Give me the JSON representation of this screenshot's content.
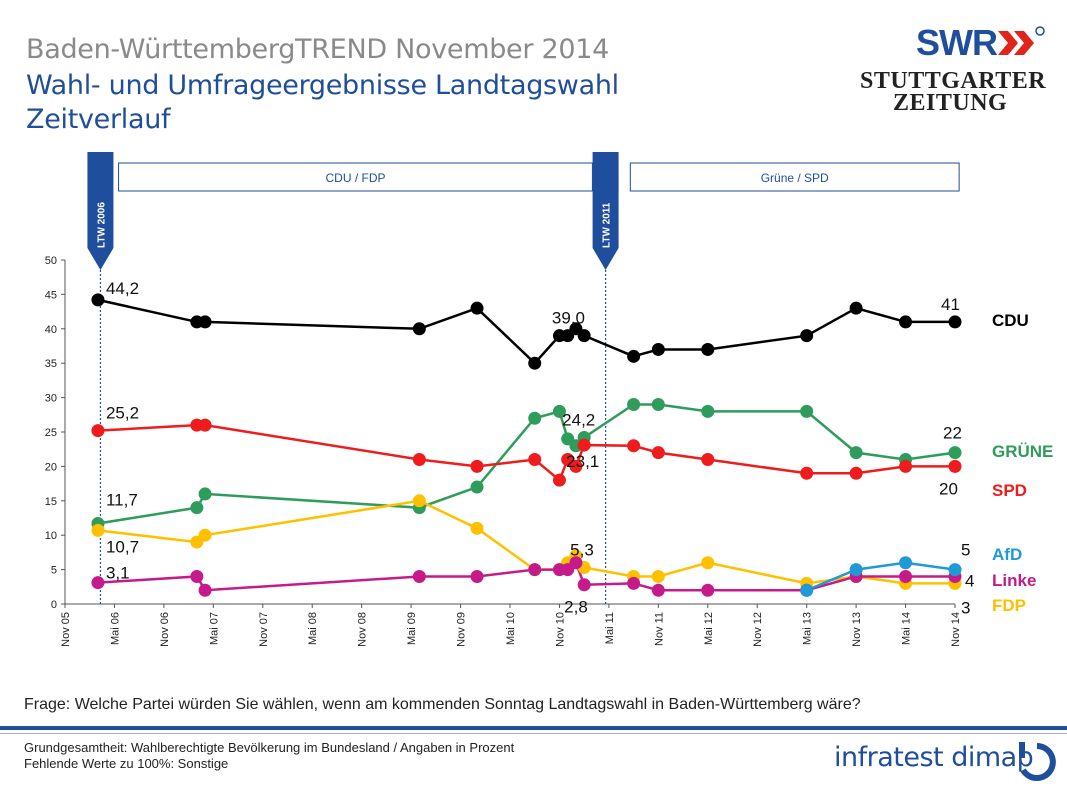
{
  "header": {
    "title_line1": "Baden-WürttembergTREND November 2014",
    "title_line2": "Wahl- und Umfrageergebnisse Landtagswahl",
    "title_line3": "Zeitverlauf"
  },
  "logos": {
    "swr": "SWR",
    "stuttgarter_line1": "STUTTGARTER",
    "stuttgarter_line2": "ZEITUNG",
    "infratest": "infratest dimap"
  },
  "question": "Frage: Welche Partei würden Sie wählen, wenn am kommenden Sonntag Landtagswahl in Baden-Württemberg wäre?",
  "footer": {
    "line1": "Grundgesamtheit: Wahlberechtigte Bevölkerung im Bundesland / Angaben in Prozent",
    "line2": "Fehlende Werte zu 100%: Sonstige"
  },
  "chart_data": {
    "type": "line",
    "x_unit": "months since 2005-11",
    "ylim": [
      0,
      50
    ],
    "yticks": [
      0,
      5,
      10,
      15,
      20,
      25,
      30,
      35,
      40,
      45,
      50
    ],
    "xticks": [
      {
        "x": 0,
        "label": "Nov 05"
      },
      {
        "x": 6,
        "label": "Mai 06"
      },
      {
        "x": 12,
        "label": "Nov 06"
      },
      {
        "x": 18,
        "label": "Mai 07"
      },
      {
        "x": 24,
        "label": "Nov 07"
      },
      {
        "x": 30,
        "label": "Mai 08"
      },
      {
        "x": 36,
        "label": "Nov 08"
      },
      {
        "x": 42,
        "label": "Mai 09"
      },
      {
        "x": 48,
        "label": "Nov 09"
      },
      {
        "x": 54,
        "label": "Mai 10"
      },
      {
        "x": 60,
        "label": "Nov 10"
      },
      {
        "x": 66,
        "label": "Mai 11"
      },
      {
        "x": 72,
        "label": "Nov 11"
      },
      {
        "x": 78,
        "label": "Mai 12"
      },
      {
        "x": 84,
        "label": "Nov 12"
      },
      {
        "x": 90,
        "label": "Mai 13"
      },
      {
        "x": 96,
        "label": "Nov 13"
      },
      {
        "x": 102,
        "label": "Mai 14"
      },
      {
        "x": 108,
        "label": "Nov 14"
      }
    ],
    "election_markers": [
      {
        "x": 4.3,
        "label": "LTW 2006"
      },
      {
        "x": 65.6,
        "label": "LTW 2011"
      }
    ],
    "government_periods": [
      {
        "label": "CDU / FDP",
        "from": 6.5,
        "to": 64
      },
      {
        "label": "Grüne / SPD",
        "from": 68.6,
        "to": 108.5
      }
    ],
    "series": [
      {
        "name": "CDU",
        "color": "#000000",
        "x": [
          4,
          16,
          17,
          43,
          50,
          57,
          60,
          61,
          62,
          63,
          69,
          72,
          78,
          90,
          96,
          102,
          108
        ],
        "y": [
          44.2,
          41,
          41,
          40,
          43,
          35,
          39,
          39,
          40,
          39,
          36,
          37,
          37,
          39,
          43,
          41,
          41
        ]
      },
      {
        "name": "GRÜNE",
        "color": "#2e9c5a",
        "x": [
          4,
          16,
          17,
          43,
          50,
          57,
          60,
          61,
          62,
          63,
          69,
          72,
          78,
          90,
          96,
          102,
          108
        ],
        "y": [
          11.7,
          14,
          16,
          14,
          17,
          27,
          28,
          24,
          23,
          24.2,
          29,
          29,
          28,
          28,
          22,
          21,
          22
        ]
      },
      {
        "name": "SPD",
        "color": "#ee1c1c",
        "x": [
          4,
          16,
          17,
          43,
          50,
          57,
          60,
          61,
          62,
          63,
          69,
          72,
          78,
          90,
          96,
          102,
          108
        ],
        "y": [
          25.2,
          26,
          26,
          21,
          20,
          21,
          18,
          21,
          20,
          23.1,
          23,
          22,
          21,
          19,
          19,
          20,
          20
        ]
      },
      {
        "name": "FDP",
        "color": "#ffc000",
        "x": [
          4,
          16,
          17,
          43,
          50,
          57,
          60,
          61,
          62,
          63,
          69,
          72,
          78,
          90,
          96,
          102,
          108
        ],
        "y": [
          10.7,
          9,
          10,
          15,
          11,
          5,
          5,
          6,
          7,
          5.3,
          4,
          4,
          6,
          3,
          4,
          3,
          3
        ]
      },
      {
        "name": "Linke",
        "color": "#c51b8a",
        "x": [
          4,
          16,
          17,
          43,
          50,
          57,
          60,
          61,
          62,
          63,
          69,
          72,
          78,
          90,
          96,
          102,
          108
        ],
        "y": [
          3.1,
          4,
          2,
          4,
          4,
          5,
          5,
          5,
          6,
          2.8,
          3,
          2,
          2,
          2,
          4,
          4,
          4
        ]
      },
      {
        "name": "AfD",
        "color": "#1e9ad6",
        "x": [
          90,
          96,
          102,
          108
        ],
        "y": [
          2,
          5,
          6,
          5
        ]
      }
    ],
    "data_labels": [
      {
        "text": "44,2",
        "x": 4,
        "y": 44.2
      },
      {
        "text": "39,0",
        "x": 62,
        "y": 39.0
      },
      {
        "text": "41",
        "x": 108,
        "y": 41
      },
      {
        "text": "25,2",
        "x": 4,
        "y": 25.2
      },
      {
        "text": "24,2",
        "x": 63,
        "y": 24.2
      },
      {
        "text": "22",
        "x": 108,
        "y": 22
      },
      {
        "text": "23,1",
        "x": 63,
        "y": 23.1
      },
      {
        "text": "20",
        "x": 108,
        "y": 20
      },
      {
        "text": "11,7",
        "x": 4,
        "y": 11.7
      },
      {
        "text": "10,7",
        "x": 4,
        "y": 10.7
      },
      {
        "text": "5,3",
        "x": 63,
        "y": 5.3
      },
      {
        "text": "5",
        "x": 108,
        "y": 5
      },
      {
        "text": "3,1",
        "x": 4,
        "y": 3.1
      },
      {
        "text": "2,8",
        "x": 63,
        "y": 2.8
      },
      {
        "text": "4",
        "x": 108,
        "y": 4
      },
      {
        "text": "3",
        "x": 108,
        "y": 3
      }
    ],
    "legend": [
      {
        "name": "CDU",
        "color": "#000000"
      },
      {
        "name": "GRÜNE",
        "color": "#2e9c5a"
      },
      {
        "name": "SPD",
        "color": "#ee1c1c"
      },
      {
        "name": "AfD",
        "color": "#1e9ad6"
      },
      {
        "name": "Linke",
        "color": "#c51b8a"
      },
      {
        "name": "FDP",
        "color": "#ffc000"
      }
    ],
    "legend_placement": "right",
    "grid": false
  }
}
